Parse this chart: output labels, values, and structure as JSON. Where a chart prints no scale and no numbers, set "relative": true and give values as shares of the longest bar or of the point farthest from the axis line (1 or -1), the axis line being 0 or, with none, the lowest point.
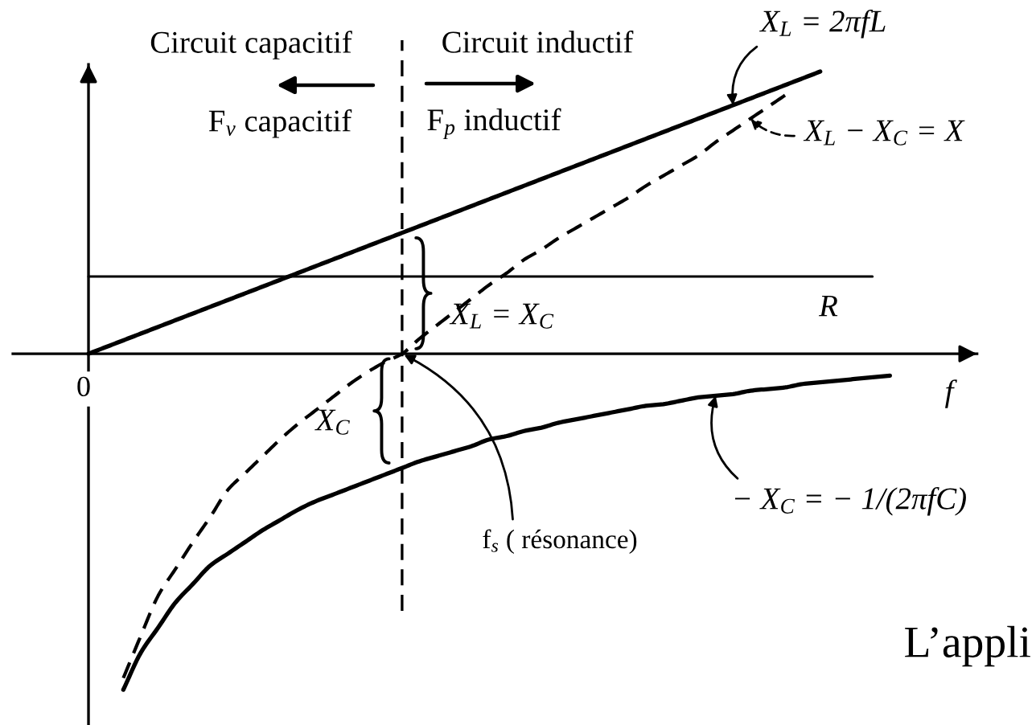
{
  "chart_data": {
    "type": "line",
    "relative": true,
    "xlabel": "f",
    "categories": [
      null,
      null,
      null,
      null,
      null,
      null,
      null,
      null,
      null,
      null,
      null,
      null,
      null,
      null,
      null,
      null,
      null,
      null,
      null,
      null,
      null,
      null,
      null,
      null,
      null,
      null,
      null,
      null,
      null,
      null,
      null,
      null,
      null,
      null,
      null,
      null,
      null,
      null,
      null,
      null,
      null,
      null,
      null,
      null,
      null,
      null,
      null,
      null,
      null,
      null,
      null,
      null
    ],
    "series": [
      {
        "name": "X$_{L}$ = 2πfL",
        "color": "#000000",
        "line_style": "solid",
        "values": [
          0,
          0.02,
          0.04,
          0.06,
          0.08,
          0.1,
          0.12,
          0.14,
          0.16,
          0.18,
          0.2,
          0.22,
          0.24,
          0.26,
          0.28,
          0.3,
          0.32,
          0.34,
          0.36,
          0.38,
          0.4,
          0.42,
          0.44,
          0.46,
          0.48,
          0.5,
          0.52,
          0.54,
          0.56,
          0.58,
          0.6,
          0.62,
          0.64,
          0.66,
          0.68,
          0.7,
          0.72,
          0.74,
          0.76,
          0.78,
          0.8,
          0.82,
          0.84,
          null,
          null,
          null,
          null,
          null,
          null,
          null,
          null,
          null
        ]
      },
      {
        "name": "X$_{L}$ − X$_{C}$ = X",
        "color": "#000000",
        "line_style": "dashed",
        "values": [
          null,
          null,
          -0.965,
          -0.84,
          -0.72,
          -0.64,
          -0.56,
          -0.485,
          -0.405,
          -0.355,
          -0.305,
          -0.255,
          -0.21,
          -0.17,
          -0.13,
          -0.09,
          -0.055,
          -0.025,
          0,
          0.045,
          0.085,
          0.125,
          0.165,
          0.205,
          0.24,
          0.28,
          0.31,
          0.345,
          0.375,
          0.405,
          0.435,
          0.465,
          0.5,
          0.53,
          0.56,
          0.59,
          0.63,
          0.665,
          0.7,
          0.735,
          0.77,
          null,
          null,
          null,
          null,
          null,
          null,
          null,
          null,
          null,
          null,
          null
        ]
      },
      {
        "name": "R",
        "color": "#000000",
        "line_style": "solid",
        "values": [
          0.23,
          0.23,
          0.23,
          0.23,
          0.23,
          0.23,
          0.23,
          0.23,
          0.23,
          0.23,
          0.23,
          0.23,
          0.23,
          0.23,
          0.23,
          0.23,
          0.23,
          0.23,
          0.23,
          0.23,
          0.23,
          0.23,
          0.23,
          0.23,
          0.23,
          0.23,
          0.23,
          0.23,
          0.23,
          0.23,
          0.23,
          0.23,
          0.23,
          0.23,
          0.23,
          0.23,
          0.23,
          0.23,
          0.23,
          0.23,
          0.23,
          0.23,
          0.23,
          0.23,
          0.23,
          0.23,
          null,
          null,
          null,
          null,
          null,
          null
        ]
      },
      {
        "name": "− X$_{C}$ = − 1/(2πfC)",
        "color": "#000000",
        "line_style": "solid",
        "values": [
          null,
          null,
          -1,
          -0.89,
          -0.815,
          -0.74,
          -0.685,
          -0.63,
          -0.595,
          -0.56,
          -0.525,
          -0.495,
          -0.465,
          -0.44,
          -0.42,
          -0.4,
          -0.38,
          -0.36,
          -0.34,
          -0.32,
          -0.305,
          -0.29,
          -0.275,
          -0.255,
          -0.245,
          -0.23,
          -0.22,
          -0.205,
          -0.195,
          -0.185,
          -0.175,
          -0.165,
          -0.155,
          -0.15,
          -0.14,
          -0.13,
          -0.125,
          -0.12,
          -0.11,
          -0.105,
          -0.1,
          -0.09,
          -0.085,
          -0.08,
          -0.075,
          -0.07,
          -0.065,
          null,
          null,
          null,
          null,
          null
        ]
      }
    ],
    "annotations": [
      "0",
      "Circuit capacitif",
      "Circuit inductif",
      "F$_{ν}$ capacitif",
      "F$_{p}$ inductif",
      "X$_{L}$ = X$_{C}$",
      "X$_{C}$",
      "f$_{s}$ ( résonance)",
      "L’appli"
    ]
  }
}
